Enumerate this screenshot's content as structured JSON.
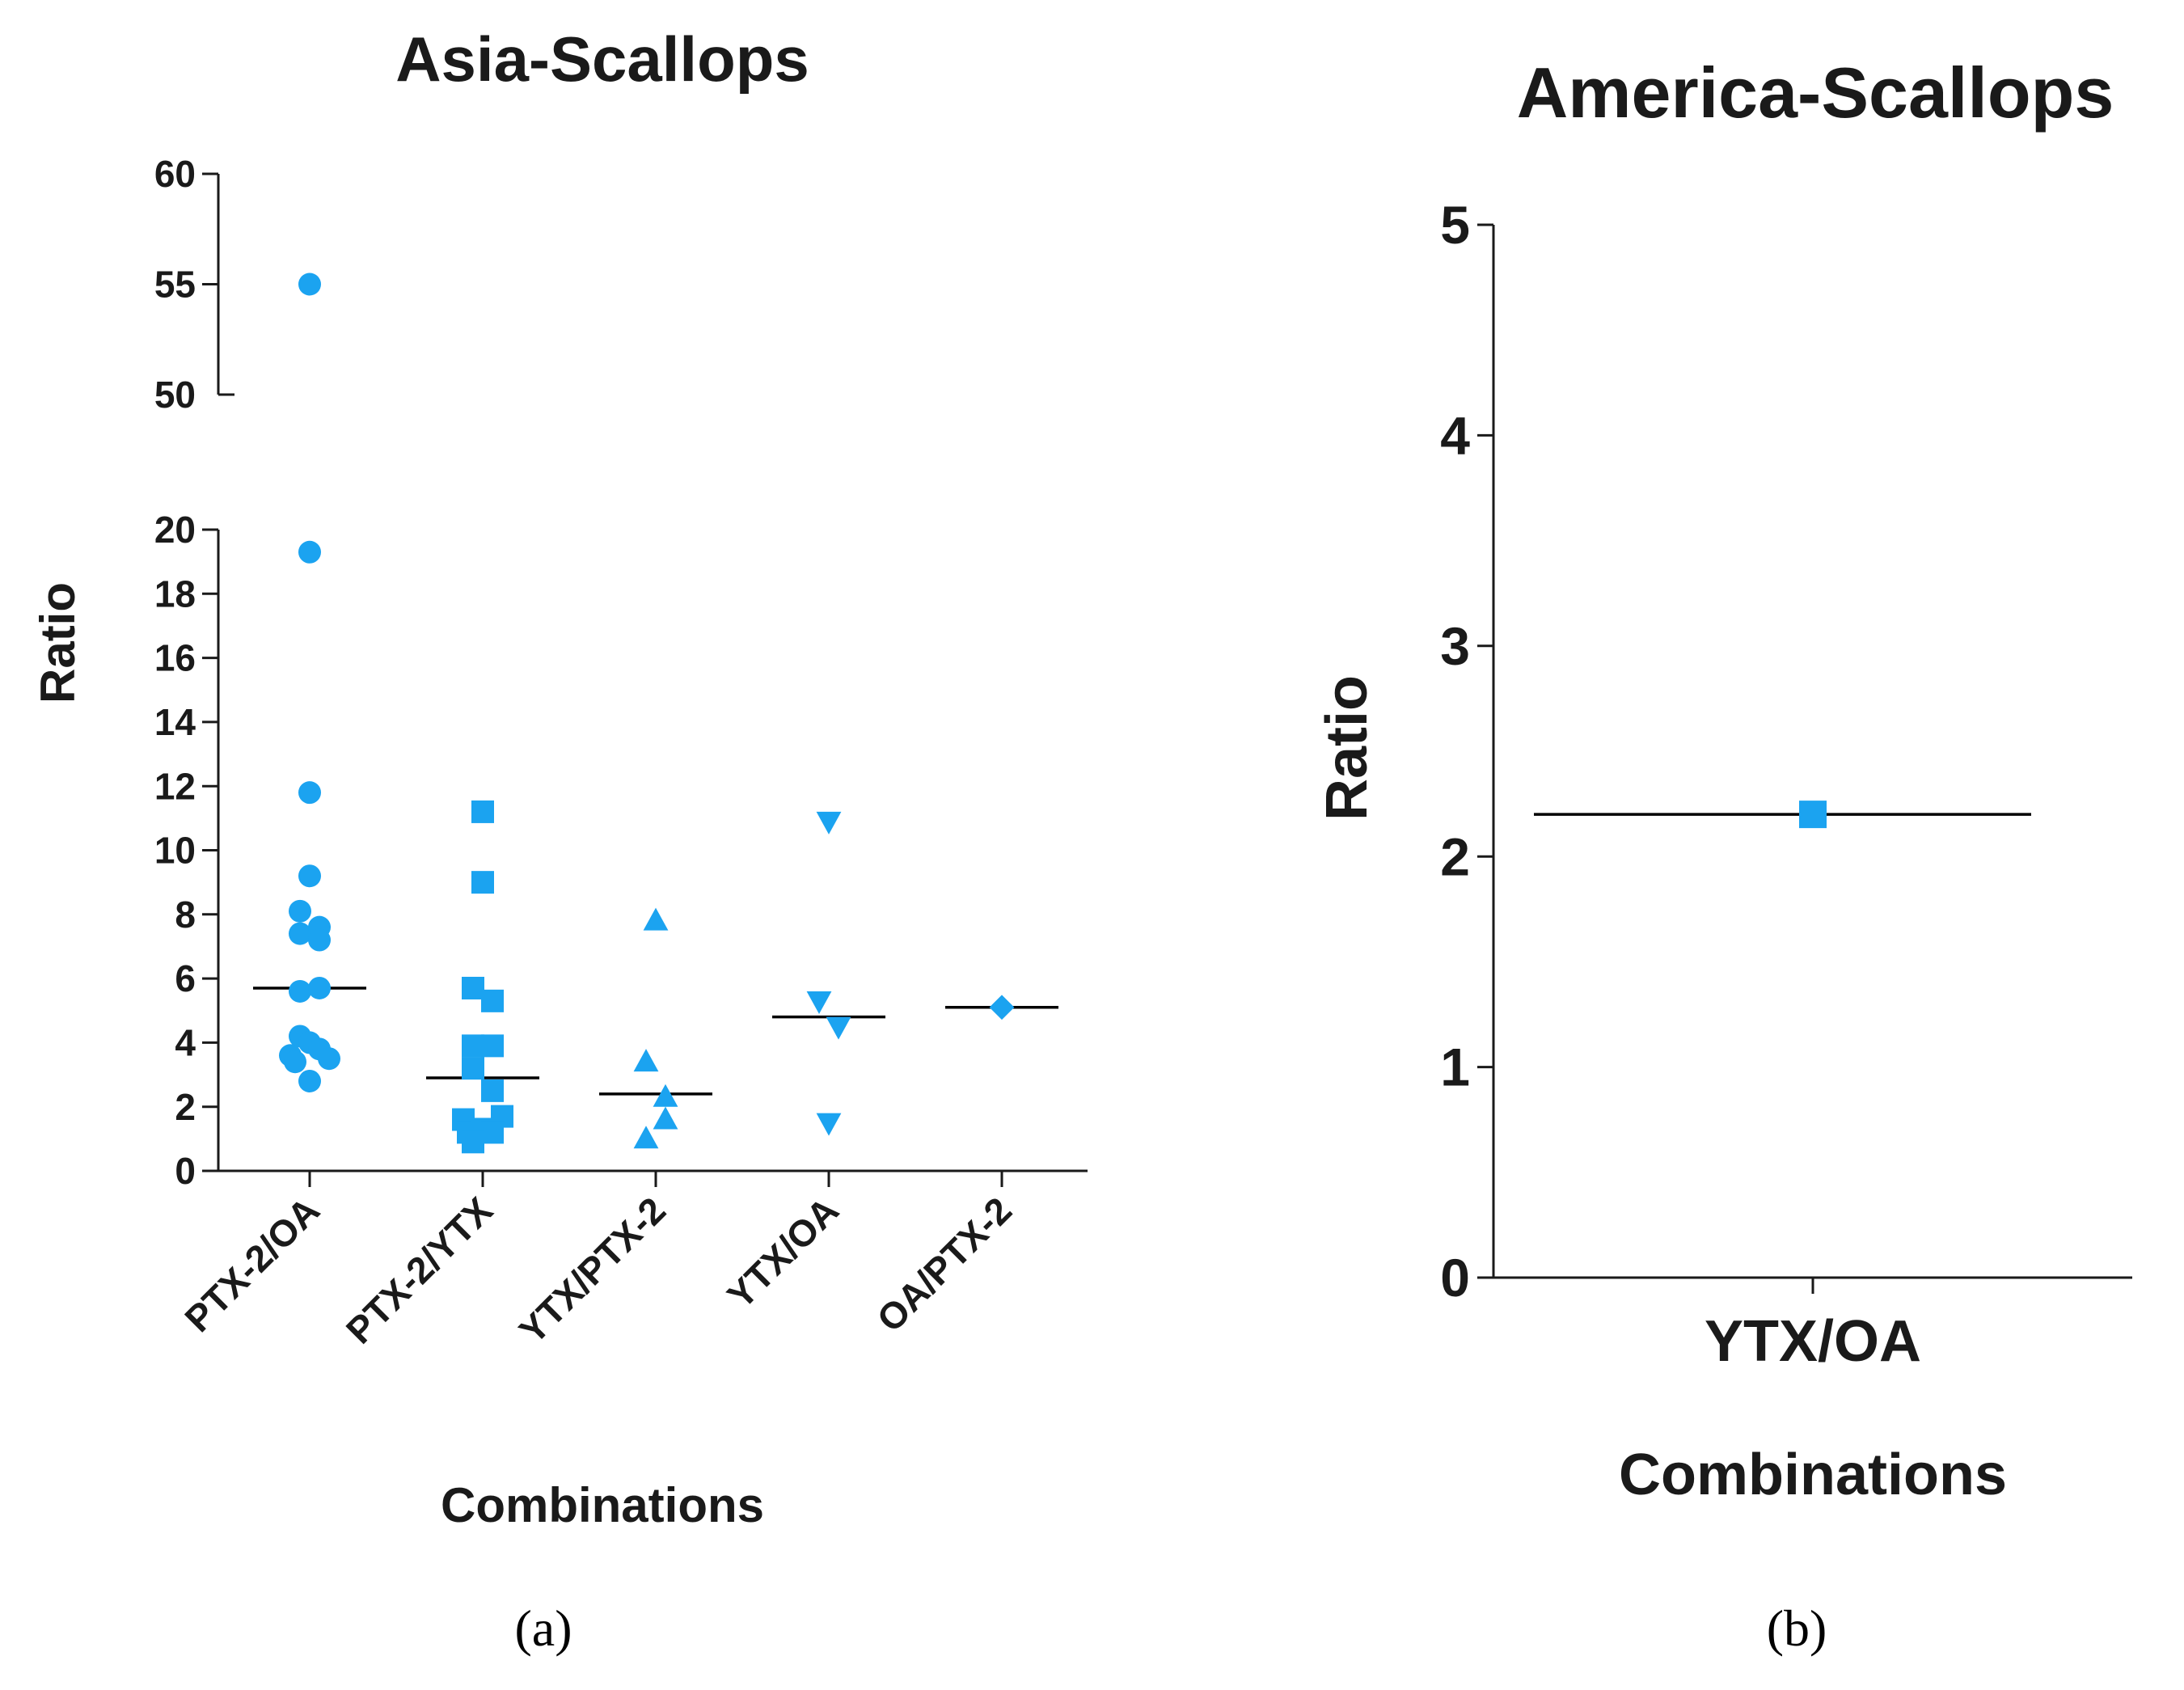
{
  "colors": {
    "marker": "#1BA3F0",
    "axis": "#1a1a1a",
    "median": "#000000"
  },
  "chart_data": [
    {
      "type": "scatter",
      "panel_label": "(a)",
      "title": "Asia-Scallops",
      "xlabel": "Combinations",
      "ylabel": "Ratio",
      "y_axis_break": {
        "lower_range": [
          0,
          20
        ],
        "upper_range": [
          50,
          60
        ]
      },
      "y_ticks_lower": [
        "0",
        "2",
        "4",
        "6",
        "8",
        "10",
        "12",
        "14",
        "16",
        "18",
        "20"
      ],
      "y_ticks_upper": [
        "50",
        "55",
        "60"
      ],
      "categories": [
        "PTX-2/OA",
        "PTX-2/YTX",
        "YTX/PTX-2",
        "YTX/OA",
        "OA/PTX-2"
      ],
      "series": [
        {
          "name": "PTX-2/OA",
          "marker": "circle",
          "median": 5.7,
          "points": [
            [
              0,
              55.0
            ],
            [
              0,
              19.3
            ],
            [
              0,
              11.8
            ],
            [
              0,
              9.2
            ],
            [
              -0.1,
              8.1
            ],
            [
              -0.1,
              7.4
            ],
            [
              0.1,
              7.6
            ],
            [
              0.1,
              7.2
            ],
            [
              -0.1,
              5.6
            ],
            [
              0.1,
              5.7
            ],
            [
              -0.1,
              4.2
            ],
            [
              0,
              4.0
            ],
            [
              0.1,
              3.8
            ],
            [
              -0.2,
              3.6
            ],
            [
              0.2,
              3.5
            ],
            [
              -0.15,
              3.4
            ],
            [
              0,
              2.8
            ]
          ]
        },
        {
          "name": "PTX-2/YTX",
          "marker": "square",
          "median": 2.9,
          "points": [
            [
              0,
              11.2
            ],
            [
              0,
              9.0
            ],
            [
              -0.1,
              5.7
            ],
            [
              0.1,
              5.3
            ],
            [
              -0.1,
              3.9
            ],
            [
              0.1,
              3.9
            ],
            [
              -0.1,
              3.2
            ],
            [
              0.1,
              2.5
            ],
            [
              -0.2,
              1.6
            ],
            [
              0.2,
              1.7
            ],
            [
              -0.15,
              1.2
            ],
            [
              0,
              1.3
            ],
            [
              0.1,
              1.2
            ],
            [
              -0.1,
              0.9
            ]
          ]
        },
        {
          "name": "YTX/PTX-2",
          "marker": "triangle-up",
          "median": 2.4,
          "points": [
            [
              0,
              7.8
            ],
            [
              -0.1,
              3.4
            ],
            [
              0.1,
              2.3
            ],
            [
              0.1,
              1.6
            ],
            [
              -0.1,
              1.0
            ]
          ]
        },
        {
          "name": "YTX/OA",
          "marker": "triangle-down",
          "median": 4.8,
          "points": [
            [
              0,
              10.9
            ],
            [
              -0.1,
              5.3
            ],
            [
              0.1,
              4.5
            ],
            [
              0,
              1.5
            ]
          ]
        },
        {
          "name": "OA/PTX-2",
          "marker": "diamond",
          "median": 5.1,
          "points": [
            [
              0,
              5.1
            ]
          ]
        }
      ]
    },
    {
      "type": "scatter",
      "panel_label": "(b)",
      "title": "America-Scallops",
      "xlabel": "Combinations",
      "ylabel": "Ratio",
      "ylim": [
        0,
        5
      ],
      "y_ticks": [
        "0",
        "1",
        "2",
        "3",
        "4",
        "5"
      ],
      "categories": [
        "YTX/OA"
      ],
      "series": [
        {
          "name": "YTX/OA",
          "marker": "square",
          "median": 2.2,
          "points": [
            [
              0,
              2.2
            ]
          ]
        }
      ]
    }
  ]
}
